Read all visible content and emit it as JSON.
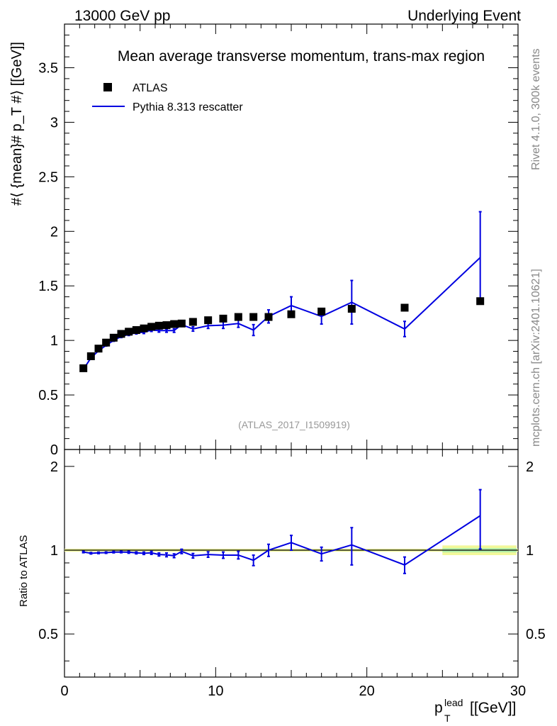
{
  "header": {
    "left": "13000 GeV pp",
    "right": "Underlying Event"
  },
  "side_labels": {
    "rivet": "Rivet 4.1.0,  300k events",
    "mcplots": "mcplots.cern.ch [arXiv:2401.10621]"
  },
  "chart_data": {
    "type": "scatter",
    "title": "Mean average transverse momentum, trans-max region",
    "analysis_id": "(ATLAS_2017_I1509919)",
    "xlabel": {
      "main": "p",
      "sup": "lead",
      "sub": "T",
      "unit": "[[GeV]]"
    },
    "ylabel": "#⟨ {mean}# p_T #⟩ [[GeV]]",
    "ratio_ylabel": "Ratio to ATLAS",
    "xlim": [
      0,
      30
    ],
    "ylim": [
      0,
      3.9
    ],
    "ratio_ylim": [
      0.35,
      2.3
    ],
    "x_ticks": [
      "0",
      "10",
      "20",
      "30"
    ],
    "y_ticks": [
      "0",
      "0.5",
      "1",
      "1.5",
      "2",
      "2.5",
      "3",
      "3.5"
    ],
    "ratio_ticks": [
      "0.5",
      "1",
      "2"
    ],
    "legend": {
      "position": "top-left",
      "entries": [
        "ATLAS",
        "Pythia 8.313 rescatter"
      ]
    },
    "series": [
      {
        "name": "ATLAS",
        "x": [
          1.25,
          1.75,
          2.25,
          2.75,
          3.25,
          3.75,
          4.25,
          4.75,
          5.25,
          5.75,
          6.25,
          6.75,
          7.25,
          7.75,
          8.5,
          9.5,
          10.5,
          11.5,
          12.5,
          13.5,
          15.0,
          17.0,
          19.0,
          22.5,
          27.5
        ],
        "y": [
          0.745,
          0.855,
          0.925,
          0.98,
          1.025,
          1.06,
          1.08,
          1.095,
          1.11,
          1.125,
          1.135,
          1.14,
          1.15,
          1.155,
          1.17,
          1.185,
          1.2,
          1.215,
          1.215,
          1.215,
          1.24,
          1.265,
          1.29,
          1.3,
          1.36
        ]
      },
      {
        "name": "Pythia 8.313 rescatter",
        "x": [
          1.25,
          1.75,
          2.25,
          2.75,
          3.25,
          3.75,
          4.25,
          4.75,
          5.25,
          5.75,
          6.25,
          6.75,
          7.25,
          7.75,
          8.5,
          9.5,
          10.5,
          11.5,
          12.5,
          13.5,
          15.0,
          17.0,
          19.0,
          22.5,
          27.5
        ],
        "y": [
          0.735,
          0.84,
          0.905,
          0.955,
          1.0,
          1.035,
          1.055,
          1.07,
          1.075,
          1.095,
          1.09,
          1.09,
          1.09,
          1.145,
          1.105,
          1.135,
          1.14,
          1.155,
          1.095,
          1.22,
          1.32,
          1.22,
          1.35,
          1.105,
          1.76
        ],
        "yerr": [
          0.005,
          0.005,
          0.006,
          0.007,
          0.008,
          0.009,
          0.01,
          0.011,
          0.012,
          0.013,
          0.014,
          0.015,
          0.016,
          0.018,
          0.02,
          0.025,
          0.03,
          0.035,
          0.05,
          0.06,
          0.08,
          0.07,
          0.2,
          0.07,
          0.42
        ]
      }
    ],
    "ratio": {
      "band_note": "ATLAS uncertainty band",
      "x": [
        1.25,
        1.75,
        2.25,
        2.75,
        3.25,
        3.75,
        4.25,
        4.75,
        5.25,
        5.75,
        6.25,
        6.75,
        7.25,
        7.75,
        8.5,
        9.5,
        10.5,
        11.5,
        12.5,
        13.5,
        15.0,
        17.0,
        19.0,
        22.5,
        27.5
      ],
      "y": [
        0.985,
        0.975,
        0.978,
        0.98,
        0.984,
        0.985,
        0.983,
        0.978,
        0.975,
        0.978,
        0.965,
        0.962,
        0.955,
        0.99,
        0.955,
        0.965,
        0.96,
        0.96,
        0.92,
        1.0,
        1.065,
        0.97,
        1.045,
        0.885,
        1.33
      ],
      "yerr": [
        0.006,
        0.006,
        0.006,
        0.006,
        0.006,
        0.006,
        0.008,
        0.008,
        0.01,
        0.012,
        0.012,
        0.015,
        0.015,
        0.018,
        0.018,
        0.022,
        0.025,
        0.03,
        0.04,
        0.05,
        0.065,
        0.055,
        0.16,
        0.06,
        0.32
      ]
    }
  }
}
